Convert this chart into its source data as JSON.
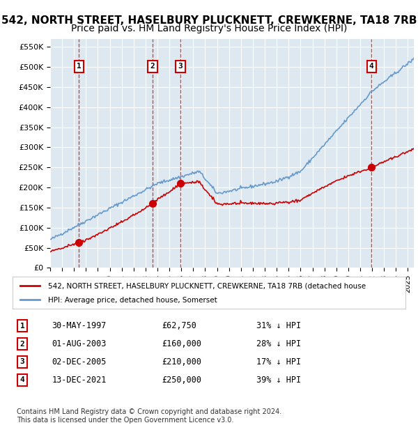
{
  "title": "542, NORTH STREET, HASELBURY PLUCKNETT, CREWKERNE, TA18 7RB",
  "subtitle": "Price paid vs. HM Land Registry's House Price Index (HPI)",
  "ylabel": "",
  "ylim": [
    0,
    570000
  ],
  "yticks": [
    0,
    50000,
    100000,
    150000,
    200000,
    250000,
    300000,
    350000,
    400000,
    450000,
    500000,
    550000
  ],
  "ytick_labels": [
    "£0",
    "£50K",
    "£100K",
    "£150K",
    "£200K",
    "£250K",
    "£300K",
    "£350K",
    "£400K",
    "£450K",
    "£500K",
    "£550K"
  ],
  "xlim_start": 1995.0,
  "xlim_end": 2025.5,
  "background_color": "#dde8f0",
  "plot_bg_color": "#dde8f0",
  "grid_color": "#ffffff",
  "sale_color": "#cc0000",
  "hpi_color": "#6699cc",
  "transactions": [
    {
      "date_year": 1997.41,
      "price": 62750,
      "label": "1"
    },
    {
      "date_year": 2003.58,
      "price": 160000,
      "label": "2"
    },
    {
      "date_year": 2005.92,
      "price": 210000,
      "label": "3"
    },
    {
      "date_year": 2021.95,
      "price": 250000,
      "label": "4"
    }
  ],
  "legend_label_red": "542, NORTH STREET, HASELBURY PLUCKNETT, CREWKERNE, TA18 7RB (detached house",
  "legend_label_blue": "HPI: Average price, detached house, Somerset",
  "table_rows": [
    {
      "num": "1",
      "date": "30-MAY-1997",
      "price": "£62,750",
      "note": "31% ↓ HPI"
    },
    {
      "num": "2",
      "date": "01-AUG-2003",
      "price": "£160,000",
      "note": "28% ↓ HPI"
    },
    {
      "num": "3",
      "date": "02-DEC-2005",
      "price": "£210,000",
      "note": "17% ↓ HPI"
    },
    {
      "num": "4",
      "date": "13-DEC-2021",
      "price": "£250,000",
      "note": "39% ↓ HPI"
    }
  ],
  "footer": "Contains HM Land Registry data © Crown copyright and database right 2024.\nThis data is licensed under the Open Government Licence v3.0.",
  "title_fontsize": 11,
  "subtitle_fontsize": 10
}
